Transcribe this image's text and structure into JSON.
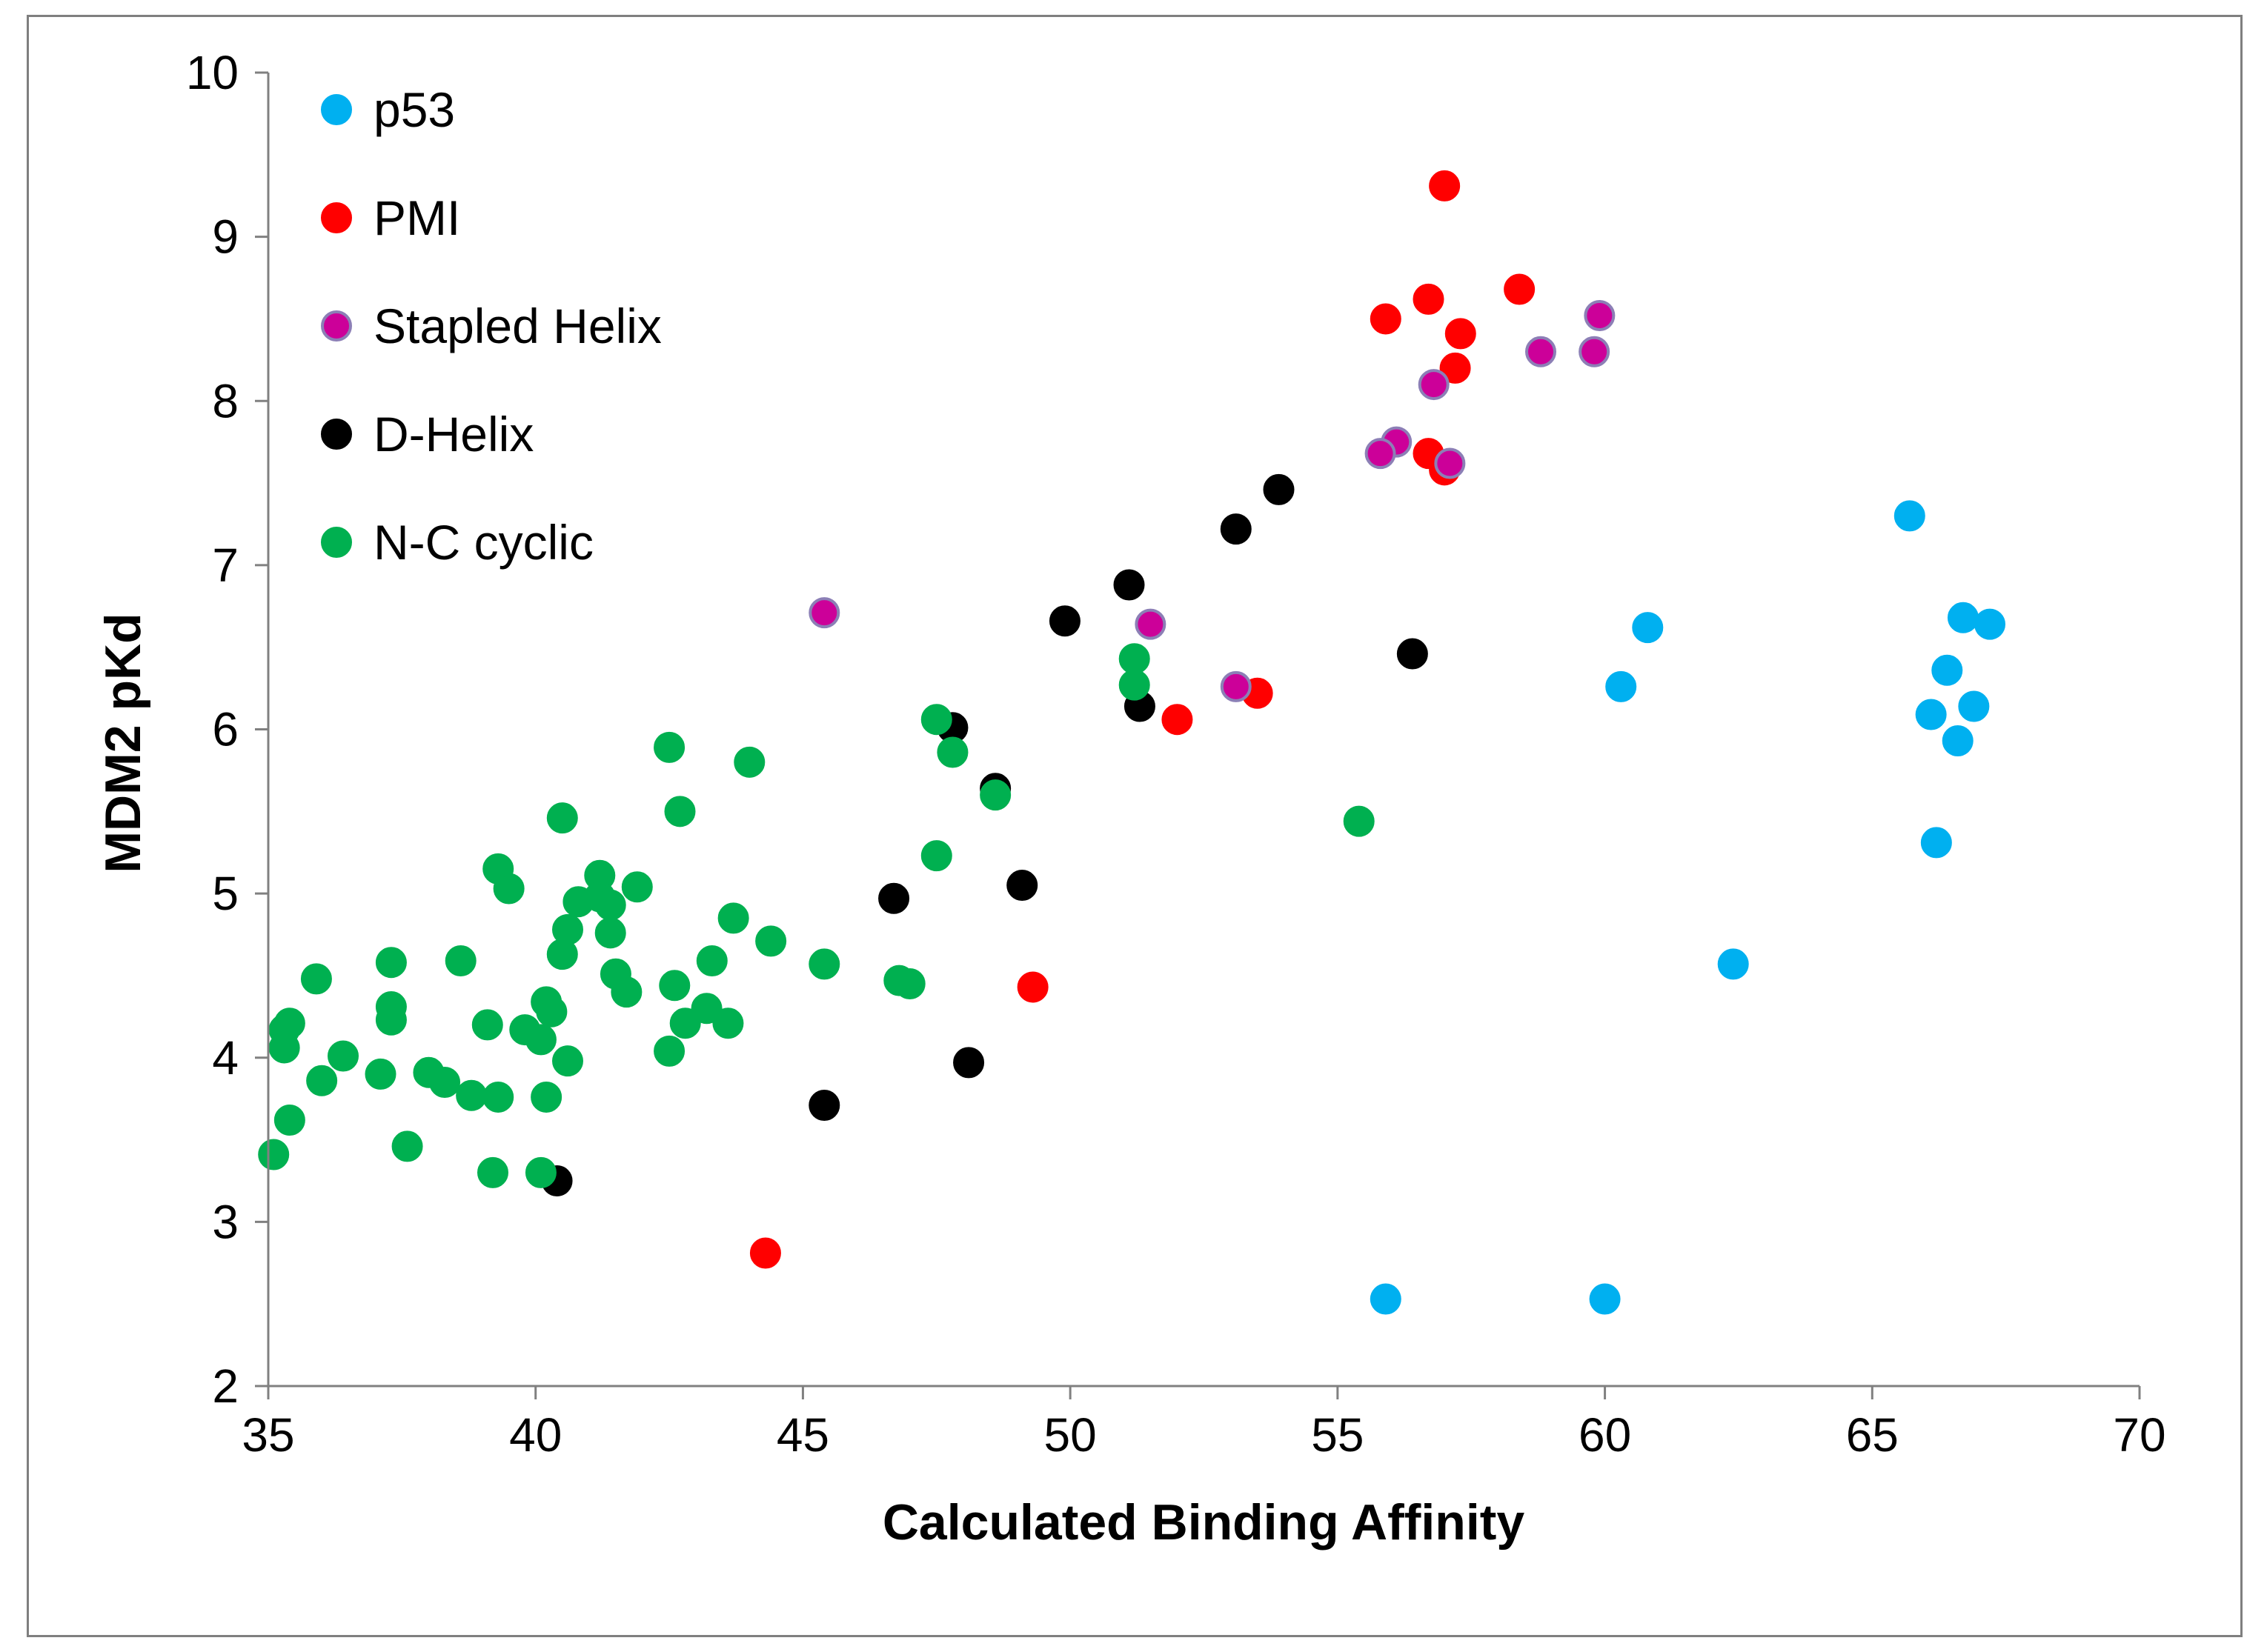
{
  "chart_data": {
    "type": "scatter",
    "title": "",
    "xlabel": "Calculated Binding Affinity",
    "ylabel": "MDM2 pKd",
    "xlim": [
      35,
      70
    ],
    "ylim": [
      2,
      10
    ],
    "xticks": [
      35,
      40,
      45,
      50,
      55,
      60,
      65,
      70
    ],
    "yticks": [
      2,
      3,
      4,
      5,
      6,
      7,
      8,
      9,
      10
    ],
    "grid": false,
    "legend_position": "top-left",
    "series": [
      {
        "name": "p53",
        "color": "#00b0f0",
        "edge": "#00b0f0",
        "points": [
          [
            65.7,
            7.3
          ],
          [
            60.8,
            6.62
          ],
          [
            66.7,
            6.68
          ],
          [
            67.2,
            6.64
          ],
          [
            60.3,
            6.26
          ],
          [
            66.4,
            6.36
          ],
          [
            66.1,
            6.09
          ],
          [
            66.9,
            6.14
          ],
          [
            66.6,
            5.93
          ],
          [
            66.2,
            5.31
          ],
          [
            62.4,
            4.57
          ],
          [
            55.9,
            2.53
          ],
          [
            60.0,
            2.53
          ]
        ]
      },
      {
        "name": "PMI",
        "color": "#ff0000",
        "edge": "#ff0000",
        "points": [
          [
            57.0,
            9.31
          ],
          [
            58.4,
            8.68
          ],
          [
            56.7,
            8.62
          ],
          [
            55.9,
            8.5
          ],
          [
            57.3,
            8.41
          ],
          [
            57.2,
            8.2
          ],
          [
            56.7,
            7.68
          ],
          [
            57.0,
            7.58
          ],
          [
            53.5,
            6.22
          ],
          [
            52.0,
            6.06
          ],
          [
            49.3,
            4.43
          ],
          [
            44.3,
            2.81
          ]
        ]
      },
      {
        "name": "Stapled Helix",
        "color": "#cc0099",
        "edge": "#8c7fb6",
        "points": [
          [
            59.9,
            8.52
          ],
          [
            58.8,
            8.3
          ],
          [
            59.8,
            8.3
          ],
          [
            56.8,
            8.1
          ],
          [
            56.1,
            7.75
          ],
          [
            55.8,
            7.68
          ],
          [
            57.1,
            7.62
          ],
          [
            45.4,
            6.71
          ],
          [
            51.5,
            6.64
          ],
          [
            53.1,
            6.26
          ]
        ]
      },
      {
        "name": "D-Helix",
        "color": "#000000",
        "edge": "#000000",
        "points": [
          [
            53.9,
            7.46
          ],
          [
            53.1,
            7.22
          ],
          [
            51.1,
            6.88
          ],
          [
            49.9,
            6.66
          ],
          [
            56.4,
            6.46
          ],
          [
            51.3,
            6.14
          ],
          [
            47.8,
            6.01
          ],
          [
            48.6,
            5.64
          ],
          [
            46.7,
            4.97
          ],
          [
            49.1,
            5.05
          ],
          [
            48.1,
            3.97
          ],
          [
            45.4,
            3.71
          ],
          [
            40.4,
            3.25
          ]
        ]
      },
      {
        "name": "N-C cyclic",
        "color": "#00b050",
        "edge": "#00b050",
        "points": [
          [
            51.2,
            6.43
          ],
          [
            51.2,
            6.27
          ],
          [
            47.5,
            6.06
          ],
          [
            47.8,
            5.86
          ],
          [
            48.6,
            5.6
          ],
          [
            47.5,
            5.23
          ],
          [
            55.4,
            5.44
          ],
          [
            42.5,
            5.89
          ],
          [
            44.0,
            5.8
          ],
          [
            42.7,
            5.5
          ],
          [
            40.5,
            5.46
          ],
          [
            39.3,
            5.15
          ],
          [
            39.5,
            5.03
          ],
          [
            41.2,
            5.11
          ],
          [
            41.9,
            5.04
          ],
          [
            41.2,
            4.98
          ],
          [
            40.8,
            4.95
          ],
          [
            41.4,
            4.93
          ],
          [
            40.6,
            4.78
          ],
          [
            41.4,
            4.76
          ],
          [
            43.7,
            4.85
          ],
          [
            40.5,
            4.63
          ],
          [
            44.4,
            4.71
          ],
          [
            38.6,
            4.59
          ],
          [
            37.3,
            4.58
          ],
          [
            43.3,
            4.59
          ],
          [
            45.4,
            4.57
          ],
          [
            41.5,
            4.51
          ],
          [
            35.9,
            4.48
          ],
          [
            46.8,
            4.47
          ],
          [
            47.0,
            4.45
          ],
          [
            42.6,
            4.44
          ],
          [
            41.7,
            4.4
          ],
          [
            37.3,
            4.31
          ],
          [
            40.2,
            4.34
          ],
          [
            40.3,
            4.28
          ],
          [
            37.3,
            4.23
          ],
          [
            43.2,
            4.3
          ],
          [
            42.8,
            4.21
          ],
          [
            43.6,
            4.21
          ],
          [
            35.4,
            4.21
          ],
          [
            35.3,
            4.17
          ],
          [
            39.1,
            4.2
          ],
          [
            39.8,
            4.17
          ],
          [
            40.1,
            4.11
          ],
          [
            35.3,
            4.06
          ],
          [
            36.4,
            4.01
          ],
          [
            42.5,
            4.04
          ],
          [
            40.6,
            3.98
          ],
          [
            37.1,
            3.9
          ],
          [
            38.0,
            3.91
          ],
          [
            38.3,
            3.85
          ],
          [
            36.0,
            3.86
          ],
          [
            38.8,
            3.77
          ],
          [
            39.3,
            3.76
          ],
          [
            40.2,
            3.76
          ],
          [
            35.4,
            3.62
          ],
          [
            37.6,
            3.46
          ],
          [
            35.1,
            3.41
          ],
          [
            39.2,
            3.3
          ],
          [
            40.1,
            3.3
          ]
        ]
      }
    ]
  }
}
